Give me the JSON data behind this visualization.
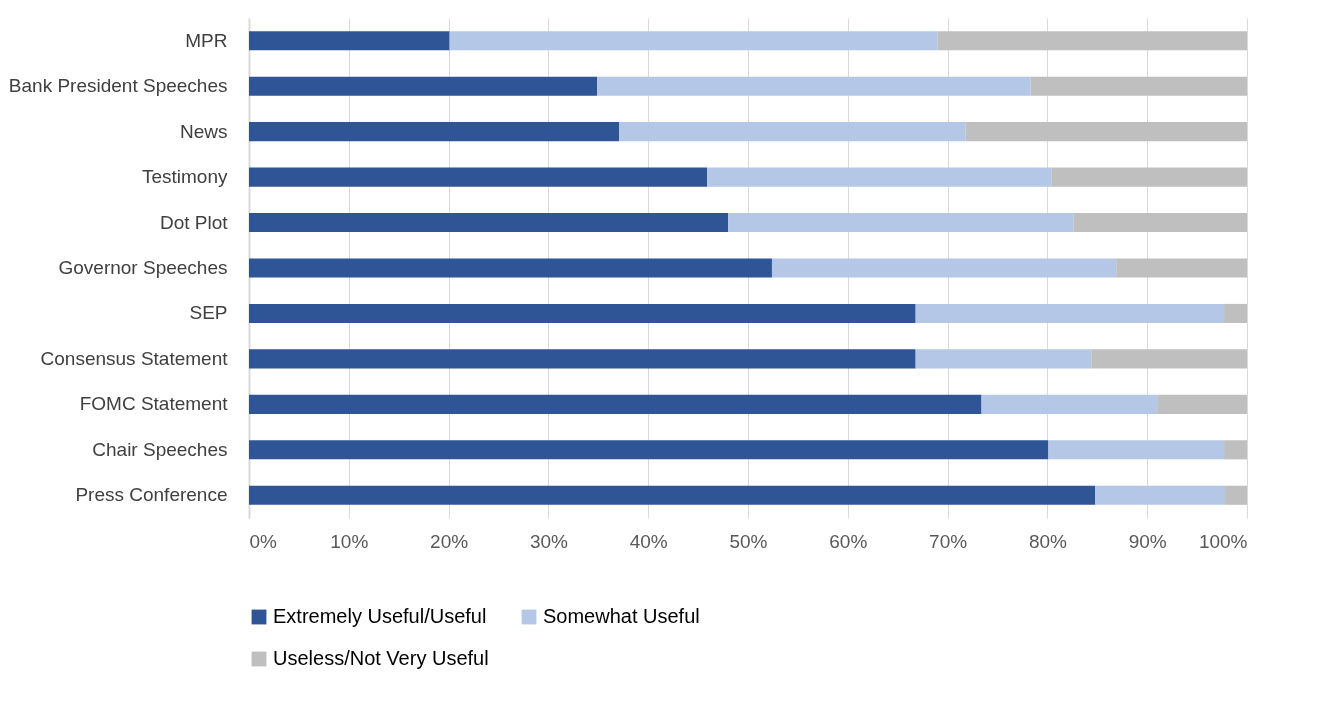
{
  "chart_data": {
    "type": "bar",
    "orientation": "horizontal",
    "stacked": true,
    "categories": [
      "MPR",
      "Bank President Speeches",
      "News",
      "Testimony",
      "Dot Plot",
      "Governor Speeches",
      "SEP",
      "Consensus Statement",
      "FOMC Statement",
      "Chair Speeches",
      "Press Conference"
    ],
    "series": [
      {
        "name": "Extremely Useful/Useful",
        "color": "#2f5597",
        "values": [
          20.1,
          34.9,
          37.1,
          45.9,
          48.0,
          52.4,
          66.8,
          66.8,
          73.4,
          80.1,
          84.8
        ]
      },
      {
        "name": "Somewhat Useful",
        "color": "#b4c7e7",
        "values": [
          48.9,
          43.4,
          34.7,
          34.5,
          34.6,
          34.5,
          30.9,
          17.6,
          17.6,
          17.6,
          13.0
        ]
      },
      {
        "name": "Useless/Not Very Useful",
        "color": "#bfbfbf",
        "values": [
          31.0,
          21.7,
          28.2,
          19.6,
          17.4,
          13.1,
          2.3,
          15.6,
          9.0,
          2.3,
          2.2
        ]
      }
    ],
    "xlim": [
      0,
      100
    ],
    "xticks": [
      {
        "value": 0,
        "label": "0%"
      },
      {
        "value": 10,
        "label": "10%"
      },
      {
        "value": 20,
        "label": "20%"
      },
      {
        "value": 30,
        "label": "30%"
      },
      {
        "value": 40,
        "label": "40%"
      },
      {
        "value": 50,
        "label": "50%"
      },
      {
        "value": 60,
        "label": "60%"
      },
      {
        "value": 70,
        "label": "70%"
      },
      {
        "value": 80,
        "label": "80%"
      },
      {
        "value": 90,
        "label": "90%"
      },
      {
        "value": 100,
        "label": "100%"
      }
    ],
    "grid": "x",
    "legend": "bottom left"
  }
}
